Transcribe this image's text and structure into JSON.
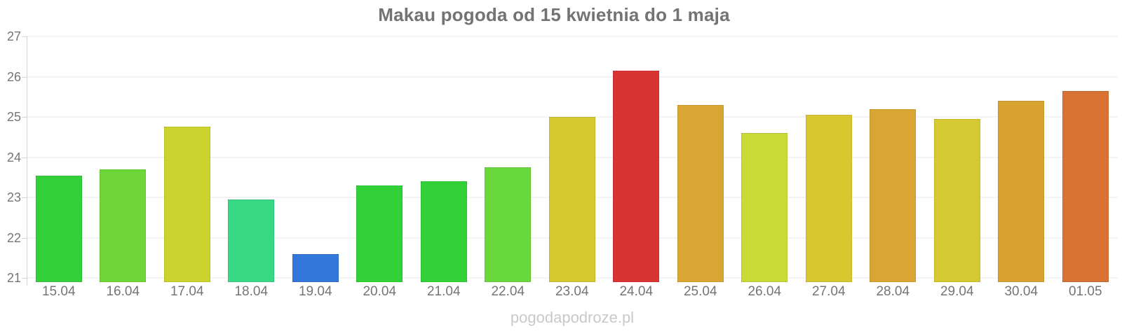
{
  "chart_data": {
    "type": "bar",
    "title": "Makau pogoda od 15 kwietnia do 1 maja",
    "categories": [
      "15.04",
      "16.04",
      "17.04",
      "18.04",
      "19.04",
      "20.04",
      "21.04",
      "22.04",
      "23.04",
      "24.04",
      "25.04",
      "26.04",
      "27.04",
      "28.04",
      "29.04",
      "30.04",
      "01.05"
    ],
    "values": [
      23.55,
      23.7,
      24.75,
      22.95,
      21.6,
      23.3,
      23.4,
      23.75,
      25.0,
      26.15,
      25.3,
      24.6,
      25.05,
      25.2,
      24.95,
      25.4,
      25.65
    ],
    "bar_colors": [
      "#33d139",
      "#6fd63a",
      "#cbd32f",
      "#38d985",
      "#3377dc",
      "#33d139",
      "#33d139",
      "#68d83a",
      "#d6c72f",
      "#d93434",
      "#d9a636",
      "#c9da36",
      "#d8c72f",
      "#d9a636",
      "#d5c934",
      "#d9a331",
      "#d97334"
    ],
    "xlabel": "",
    "ylabel": "",
    "ylim": [
      20.9,
      27
    ],
    "yticks": [
      21,
      22,
      23,
      24,
      25,
      26,
      27
    ],
    "grid": true,
    "legend": false,
    "watermark": "pogodapodroze.pl"
  },
  "style": {
    "background": "#ffffff",
    "title_color": "#737373",
    "axis_text_color": "#757575",
    "gridline_color": "#f4f4f4",
    "axis_line_color": "#d6d6d6",
    "watermark_color": "#c9c9c9"
  }
}
